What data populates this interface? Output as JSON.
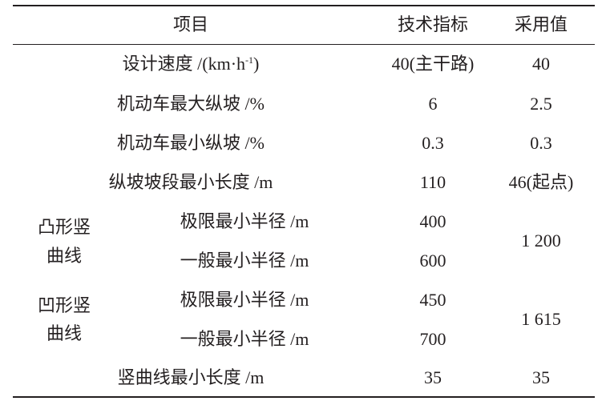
{
  "header": {
    "item": "项目",
    "spec": "技术指标",
    "adopted": "采用值"
  },
  "rows": [
    {
      "item": "设计速度 /(km·h",
      "item_sup": "-1",
      "item_end": ")",
      "spec": "40(主干路)",
      "adopted": "40"
    },
    {
      "item": "机动车最大纵坡 /%",
      "spec": "6",
      "adopted": "2.5"
    },
    {
      "item": "机动车最小纵坡 /%",
      "spec": "0.3",
      "adopted": "0.3"
    },
    {
      "item": "纵坡坡段最小长度 /m",
      "spec": "110",
      "adopted": "46(起点)"
    }
  ],
  "groups": [
    {
      "label_1": "凸形竖",
      "label_2": "曲线",
      "adopted": "1 200",
      "subs": [
        {
          "item": "极限最小半径 /m",
          "spec": "400"
        },
        {
          "item": "一般最小半径 /m",
          "spec": "600"
        }
      ]
    },
    {
      "label_1": "凹形竖",
      "label_2": "曲线",
      "adopted": "1 615",
      "subs": [
        {
          "item": "极限最小半径 /m",
          "spec": "450"
        },
        {
          "item": "一般最小半径 /m",
          "spec": "700"
        }
      ]
    }
  ],
  "last": {
    "item": "竖曲线最小长度 /m",
    "spec": "35",
    "adopted": "35"
  }
}
